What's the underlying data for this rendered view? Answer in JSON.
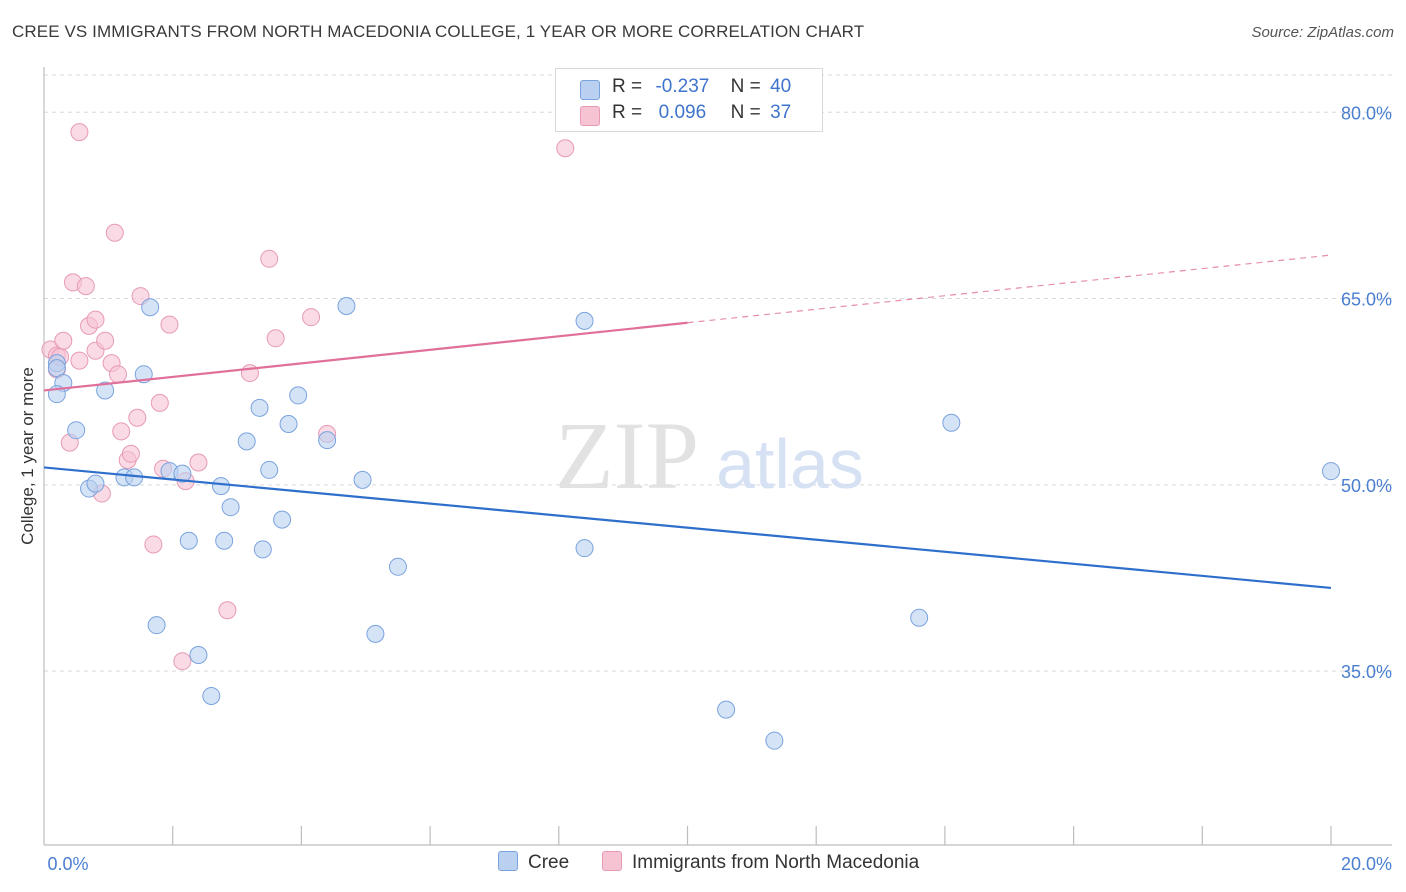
{
  "header": {
    "title": "CREE VS IMMIGRANTS FROM NORTH MACEDONIA COLLEGE, 1 YEAR OR MORE CORRELATION CHART",
    "source": "Source: ZipAtlas.com"
  },
  "legend": {
    "cree": {
      "r_label": "R =",
      "r_value": "-0.237",
      "n_label": "N =",
      "n_value": "40"
    },
    "macedonia": {
      "r_label": "R =",
      "r_value": "0.096",
      "n_label": "N =",
      "n_value": "37"
    }
  },
  "bottom_legend": {
    "cree": "Cree",
    "macedonia": "Immigrants from North Macedonia"
  },
  "watermark": {
    "zip": "ZIP",
    "atlas": "atlas"
  },
  "colors": {
    "cree_fill": "#b9d0f0",
    "cree_stroke": "#7aa3de",
    "cree_line": "#2f6fcc",
    "mac_fill": "#f6c3d3",
    "mac_stroke": "#e79ab4",
    "mac_line": "#e0709a",
    "tick_text": "#4a7fd0",
    "grid": "#d9d9d9"
  },
  "chart_data": {
    "type": "scatter",
    "title": "CREE VS IMMIGRANTS FROM NORTH MACEDONIA COLLEGE, 1 YEAR OR MORE CORRELATION CHART",
    "ylabel": "College, 1 year or more",
    "xlabel": "",
    "xlim": [
      0,
      20
    ],
    "ylim": [
      21,
      83
    ],
    "x_ticks": [
      "0.0%",
      "20.0%"
    ],
    "y_ticks": [
      {
        "value": 35,
        "label": "35.0%"
      },
      {
        "value": 50,
        "label": "50.0%"
      },
      {
        "value": 65,
        "label": "65.0%"
      },
      {
        "value": 80,
        "label": "80.0%"
      }
    ],
    "grid": true,
    "series": [
      {
        "name": "Cree",
        "r": -0.237,
        "n": 40,
        "trend": {
          "x": [
            0,
            20
          ],
          "y": [
            51.4,
            41.7
          ],
          "dashed_from": null
        },
        "points": [
          [
            0.2,
            59.8
          ],
          [
            0.2,
            59.4
          ],
          [
            0.3,
            58.2
          ],
          [
            0.2,
            57.3
          ],
          [
            0.5,
            54.4
          ],
          [
            0.7,
            49.7
          ],
          [
            0.8,
            50.1
          ],
          [
            0.95,
            57.6
          ],
          [
            1.25,
            50.6
          ],
          [
            1.4,
            50.6
          ],
          [
            1.55,
            58.9
          ],
          [
            1.65,
            64.3
          ],
          [
            1.75,
            38.7
          ],
          [
            1.95,
            51.1
          ],
          [
            2.15,
            50.9
          ],
          [
            2.25,
            45.5
          ],
          [
            2.4,
            36.3
          ],
          [
            2.6,
            33.0
          ],
          [
            2.75,
            49.9
          ],
          [
            2.8,
            45.5
          ],
          [
            2.9,
            48.2
          ],
          [
            3.15,
            53.5
          ],
          [
            3.35,
            56.2
          ],
          [
            3.4,
            44.8
          ],
          [
            3.5,
            51.2
          ],
          [
            3.7,
            47.2
          ],
          [
            3.8,
            54.9
          ],
          [
            3.95,
            57.2
          ],
          [
            4.4,
            53.6
          ],
          [
            4.7,
            64.4
          ],
          [
            4.95,
            50.4
          ],
          [
            5.15,
            38.0
          ],
          [
            5.5,
            43.4
          ],
          [
            8.4,
            44.9
          ],
          [
            8.4,
            63.2
          ],
          [
            10.6,
            31.9
          ],
          [
            11.35,
            29.4
          ],
          [
            13.6,
            39.3
          ],
          [
            14.1,
            55.0
          ],
          [
            20.0,
            51.1
          ]
        ]
      },
      {
        "name": "Immigrants from North Macedonia",
        "r": 0.096,
        "n": 37,
        "trend": {
          "x": [
            0,
            20
          ],
          "y": [
            57.6,
            68.5
          ],
          "dashed_from": 10.0
        },
        "points": [
          [
            0.1,
            60.9
          ],
          [
            0.2,
            60.4
          ],
          [
            0.2,
            59.3
          ],
          [
            0.25,
            60.3
          ],
          [
            0.3,
            61.6
          ],
          [
            0.4,
            53.4
          ],
          [
            0.45,
            66.3
          ],
          [
            0.55,
            60.0
          ],
          [
            0.55,
            78.4
          ],
          [
            0.65,
            66.0
          ],
          [
            0.7,
            62.8
          ],
          [
            0.8,
            63.3
          ],
          [
            0.8,
            60.8
          ],
          [
            0.9,
            49.3
          ],
          [
            0.95,
            61.6
          ],
          [
            1.05,
            59.8
          ],
          [
            1.1,
            70.3
          ],
          [
            1.15,
            58.9
          ],
          [
            1.2,
            54.3
          ],
          [
            1.3,
            52.0
          ],
          [
            1.35,
            52.5
          ],
          [
            1.45,
            55.4
          ],
          [
            1.5,
            65.2
          ],
          [
            1.7,
            45.2
          ],
          [
            1.8,
            56.6
          ],
          [
            1.85,
            51.3
          ],
          [
            1.95,
            62.9
          ],
          [
            2.15,
            35.8
          ],
          [
            2.2,
            50.3
          ],
          [
            2.4,
            51.8
          ],
          [
            2.85,
            39.9
          ],
          [
            3.2,
            59.0
          ],
          [
            3.5,
            68.2
          ],
          [
            3.6,
            61.8
          ],
          [
            4.15,
            63.5
          ],
          [
            4.4,
            54.1
          ],
          [
            8.1,
            77.1
          ]
        ]
      }
    ]
  }
}
